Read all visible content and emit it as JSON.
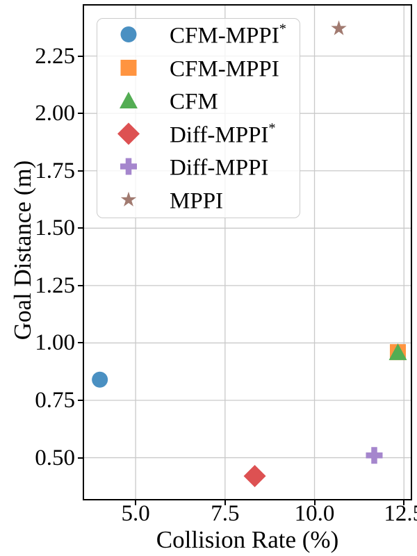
{
  "chart_data": {
    "type": "scatter",
    "title": "",
    "xlabel": "Collision Rate (%)",
    "ylabel": "Goal Distance (m)",
    "xlim": [
      3.56,
      12.69
    ],
    "ylim": [
      0.32,
      2.47
    ],
    "x_ticks": [
      5.0,
      7.5,
      10.0,
      12.5
    ],
    "x_tick_labels": [
      "5.0",
      "7.5",
      "10.0",
      "12.5"
    ],
    "y_ticks": [
      2.25,
      2.0,
      1.75,
      1.5,
      1.25,
      1.0,
      0.75,
      0.5
    ],
    "y_tick_labels": [
      "2.25",
      "2.00",
      "1.75",
      "1.50",
      "1.25",
      "1.00",
      "0.75",
      "0.50"
    ],
    "grid": true,
    "grid_color": "#c9c9c9",
    "axis_color": "#000000",
    "legend_position": "upper-left",
    "series": [
      {
        "name": "CFM-MPPI",
        "suffix": "*",
        "marker": "circle",
        "color": "#4a90c2",
        "points": [
          [
            4.0,
            0.84
          ]
        ]
      },
      {
        "name": "CFM-MPPI",
        "suffix": "",
        "marker": "square",
        "color": "#ff9440",
        "points": [
          [
            12.33,
            0.96
          ]
        ]
      },
      {
        "name": "CFM",
        "suffix": "",
        "marker": "triangle",
        "color": "#53ad53",
        "points": [
          [
            12.33,
            0.96
          ]
        ]
      },
      {
        "name": "Diff-MPPI",
        "suffix": "*",
        "marker": "diamond",
        "color": "#dd5152",
        "points": [
          [
            8.33,
            0.42
          ]
        ]
      },
      {
        "name": "Diff-MPPI",
        "suffix": "",
        "marker": "plus",
        "color": "#a586cd",
        "points": [
          [
            11.67,
            0.51
          ]
        ]
      },
      {
        "name": "MPPI",
        "suffix": "",
        "marker": "star",
        "color": "#a17a70",
        "points": [
          [
            10.68,
            2.37
          ]
        ]
      }
    ]
  }
}
